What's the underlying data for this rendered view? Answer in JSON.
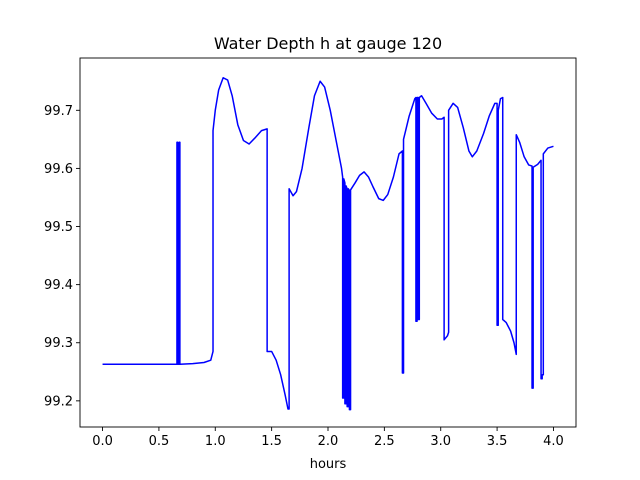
{
  "chart_data": {
    "type": "line",
    "title": "Water Depth h at gauge 120",
    "xlabel": "hours",
    "ylabel": "",
    "xlim": [
      -0.2,
      4.2
    ],
    "ylim": [
      99.155,
      99.79
    ],
    "xticks": [
      0.0,
      0.5,
      1.0,
      1.5,
      2.0,
      2.5,
      3.0,
      3.5,
      4.0
    ],
    "xtick_labels": [
      "0.0",
      "0.5",
      "1.0",
      "1.5",
      "2.0",
      "2.5",
      "3.0",
      "3.5",
      "4.0"
    ],
    "yticks": [
      99.2,
      99.3,
      99.4,
      99.5,
      99.6,
      99.7
    ],
    "ytick_labels": [
      "99.2",
      "99.3",
      "99.4",
      "99.5",
      "99.6",
      "99.7"
    ],
    "grid": false,
    "series": [
      {
        "color": "#0000ff",
        "points": [
          [
            0.0,
            99.263
          ],
          [
            0.66,
            99.263
          ],
          [
            0.66,
            99.645
          ],
          [
            0.667,
            99.645
          ],
          [
            0.667,
            99.263
          ],
          [
            0.68,
            99.263
          ],
          [
            0.68,
            99.645
          ],
          [
            0.686,
            99.645
          ],
          [
            0.686,
            99.263
          ],
          [
            0.8,
            99.264
          ],
          [
            0.9,
            99.266
          ],
          [
            0.96,
            99.27
          ],
          [
            0.98,
            99.285
          ],
          [
            0.98,
            99.665
          ],
          [
            1.0,
            99.7
          ],
          [
            1.03,
            99.735
          ],
          [
            1.07,
            99.756
          ],
          [
            1.11,
            99.752
          ],
          [
            1.15,
            99.725
          ],
          [
            1.2,
            99.675
          ],
          [
            1.25,
            99.648
          ],
          [
            1.3,
            99.642
          ],
          [
            1.35,
            99.652
          ],
          [
            1.41,
            99.665
          ],
          [
            1.46,
            99.668
          ],
          [
            1.46,
            99.285
          ],
          [
            1.5,
            99.285
          ],
          [
            1.54,
            99.27
          ],
          [
            1.58,
            99.245
          ],
          [
            1.62,
            99.21
          ],
          [
            1.645,
            99.186
          ],
          [
            1.655,
            99.186
          ],
          [
            1.655,
            99.565
          ],
          [
            1.69,
            99.553
          ],
          [
            1.72,
            99.56
          ],
          [
            1.77,
            99.6
          ],
          [
            1.83,
            99.67
          ],
          [
            1.88,
            99.725
          ],
          [
            1.93,
            99.75
          ],
          [
            1.97,
            99.74
          ],
          [
            2.02,
            99.7
          ],
          [
            2.07,
            99.65
          ],
          [
            2.12,
            99.6
          ],
          [
            2.13,
            99.585
          ],
          [
            2.13,
            99.205
          ],
          [
            2.14,
            99.205
          ],
          [
            2.14,
            99.582
          ],
          [
            2.15,
            99.575
          ],
          [
            2.15,
            99.195
          ],
          [
            2.16,
            99.195
          ],
          [
            2.16,
            99.57
          ],
          [
            2.17,
            99.565
          ],
          [
            2.17,
            99.19
          ],
          [
            2.18,
            99.19
          ],
          [
            2.18,
            99.565
          ],
          [
            2.19,
            99.562
          ],
          [
            2.19,
            99.185
          ],
          [
            2.2,
            99.185
          ],
          [
            2.2,
            99.563
          ],
          [
            2.24,
            99.575
          ],
          [
            2.28,
            99.588
          ],
          [
            2.32,
            99.594
          ],
          [
            2.36,
            99.585
          ],
          [
            2.4,
            99.568
          ],
          [
            2.45,
            99.548
          ],
          [
            2.49,
            99.545
          ],
          [
            2.53,
            99.555
          ],
          [
            2.58,
            99.585
          ],
          [
            2.63,
            99.625
          ],
          [
            2.66,
            99.63
          ],
          [
            2.66,
            99.248
          ],
          [
            2.67,
            99.248
          ],
          [
            2.67,
            99.65
          ],
          [
            2.72,
            99.69
          ],
          [
            2.77,
            99.72
          ],
          [
            2.78,
            99.722
          ],
          [
            2.78,
            99.337
          ],
          [
            2.79,
            99.337
          ],
          [
            2.79,
            99.722
          ],
          [
            2.8,
            99.722
          ],
          [
            2.8,
            99.34
          ],
          [
            2.81,
            99.34
          ],
          [
            2.81,
            99.722
          ],
          [
            2.83,
            99.725
          ],
          [
            2.87,
            99.712
          ],
          [
            2.92,
            99.695
          ],
          [
            2.97,
            99.685
          ],
          [
            3.01,
            99.685
          ],
          [
            3.03,
            99.688
          ],
          [
            3.03,
            99.305
          ],
          [
            3.06,
            99.312
          ],
          [
            3.07,
            99.318
          ],
          [
            3.07,
            99.7
          ],
          [
            3.11,
            99.712
          ],
          [
            3.15,
            99.705
          ],
          [
            3.2,
            99.67
          ],
          [
            3.25,
            99.63
          ],
          [
            3.28,
            99.62
          ],
          [
            3.32,
            99.63
          ],
          [
            3.38,
            99.66
          ],
          [
            3.43,
            99.69
          ],
          [
            3.48,
            99.712
          ],
          [
            3.5,
            99.712
          ],
          [
            3.5,
            99.33
          ],
          [
            3.51,
            99.33
          ],
          [
            3.51,
            99.7
          ],
          [
            3.53,
            99.72
          ],
          [
            3.55,
            99.722
          ],
          [
            3.55,
            99.34
          ],
          [
            3.58,
            99.335
          ],
          [
            3.62,
            99.32
          ],
          [
            3.65,
            99.3
          ],
          [
            3.67,
            99.28
          ],
          [
            3.67,
            99.658
          ],
          [
            3.7,
            99.645
          ],
          [
            3.74,
            99.62
          ],
          [
            3.78,
            99.606
          ],
          [
            3.81,
            99.604
          ],
          [
            3.81,
            99.222
          ],
          [
            3.82,
            99.222
          ],
          [
            3.82,
            99.602
          ],
          [
            3.86,
            99.607
          ],
          [
            3.89,
            99.614
          ],
          [
            3.89,
            99.238
          ],
          [
            3.9,
            99.238
          ],
          [
            3.9,
            99.245
          ],
          [
            3.91,
            99.245
          ],
          [
            3.91,
            99.625
          ],
          [
            3.95,
            99.635
          ],
          [
            4.0,
            99.638
          ]
        ]
      }
    ]
  }
}
